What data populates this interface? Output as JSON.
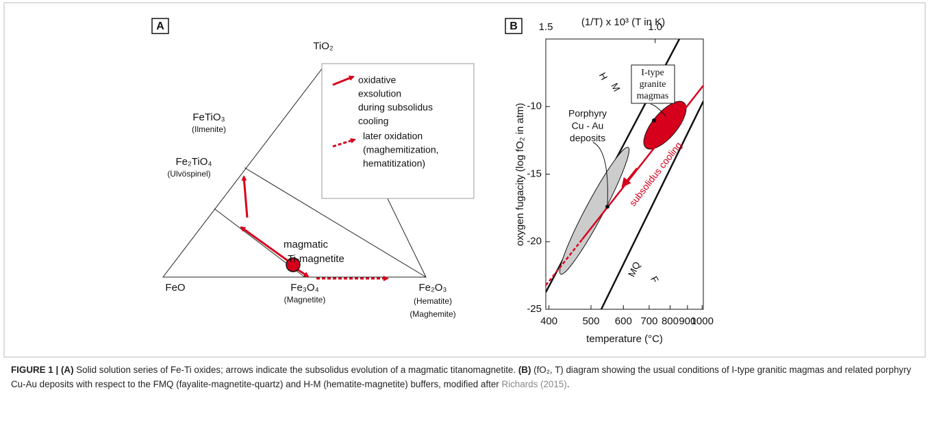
{
  "panel_a": {
    "label": "A",
    "apex": "TiO₂",
    "ilmenite": {
      "formula": "FeTiO₃",
      "name": "(Ilmenite)"
    },
    "ulvospinel": {
      "formula": "Fe₂TiO₄",
      "name": "(Ulvöspinel)"
    },
    "feo": "FeO",
    "magnetite": {
      "formula": "Fe₃O₄",
      "name": "(Magnetite)"
    },
    "hematite": {
      "formula": "Fe₂O₃",
      "names": [
        "(Hematite)",
        "(Maghemite)"
      ]
    },
    "point": [
      "magmatic",
      "Ti-magnetite"
    ],
    "legend": {
      "solid": [
        "oxidative",
        "exsolution",
        "during subsolidus",
        "cooling"
      ],
      "dashed": [
        "later oxidation",
        "(maghemitization,",
        "hematitization)"
      ]
    }
  },
  "panel_b": {
    "label": "B",
    "top_axis_label": "(1/T) x 10³ (T in K)",
    "xlabel": "temperature (°C)",
    "ylabel": "oxygen fugacity (log fO₂ in atm)",
    "xlim": [
      1.5,
      0.78
    ],
    "top_ticks": [
      1.5,
      {
        "value": 1.0,
        "label": "1.0"
      }
    ],
    "xticks": [
      400,
      500,
      600,
      700,
      800,
      900,
      1000
    ],
    "ylim": [
      -5,
      -25
    ],
    "yticks": [
      -10,
      -15,
      -20,
      -25
    ],
    "buffers": {
      "hm": [
        "H",
        "M"
      ],
      "fmq": [
        "MQ",
        "F"
      ]
    },
    "itype": [
      "I-type",
      "granite",
      "magmas"
    ],
    "porphyry": [
      "Porphyry",
      "Cu - Au",
      "deposits"
    ],
    "cooling": "subsolidus cooling"
  },
  "caption": [
    {
      "text": "FIGURE 1 | (A)",
      "bold": true
    },
    {
      "text": " Solid solution series of Fe-Ti oxides; arrows indicate the subsolidus evolution of a magmatic titanomagnetite. "
    },
    {
      "text": "(B)",
      "bold": true
    },
    {
      "text": " (fO₂, T) diagram showing the usual conditions of I-type granitic magmas and related porphyry Cu-Au deposits with respect to the FMQ (fayalite-magnetite-quartz) and H-M (hematite-magnetite) buffers, modified after "
    },
    {
      "text": "Richards (2015)",
      "link": true
    },
    {
      "text": "."
    }
  ]
}
